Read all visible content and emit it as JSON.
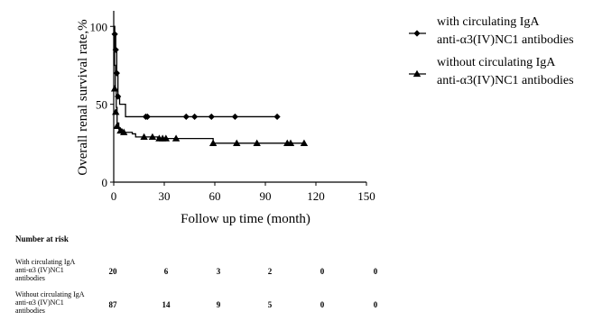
{
  "chart_data": {
    "type": "line",
    "xlabel": "Follow up time (month)",
    "ylabel": "Overall renal survival rate,%",
    "xlim": [
      0,
      150
    ],
    "ylim": [
      0,
      110
    ],
    "xticks": [
      0,
      30,
      60,
      90,
      120,
      150
    ],
    "yticks": [
      0,
      50,
      100
    ],
    "grid": false,
    "legend_position": "top-right",
    "series": [
      {
        "name": "with circulating IgA\nanti-α3(IV)NC1 antibodies",
        "legend_lines": [
          "with circulating IgA",
          "anti-α3(IV)NC1 antibodies"
        ],
        "marker": "diamond",
        "steps": [
          [
            0,
            100
          ],
          [
            0.6,
            95
          ],
          [
            1.2,
            85
          ],
          [
            1.8,
            70
          ],
          [
            2.5,
            55
          ],
          [
            3.5,
            50
          ],
          [
            7,
            42
          ],
          [
            97,
            42
          ]
        ],
        "markers": [
          [
            0.6,
            95
          ],
          [
            1.2,
            85
          ],
          [
            1.8,
            70
          ],
          [
            2.5,
            55
          ],
          [
            19,
            42
          ],
          [
            20,
            42
          ],
          [
            43,
            42
          ],
          [
            48,
            42
          ],
          [
            58,
            42
          ],
          [
            72,
            42
          ],
          [
            97,
            42
          ]
        ]
      },
      {
        "name": "without circulating IgA\nanti-α3(IV)NC1 antibodies",
        "legend_lines": [
          "without circulating IgA",
          "anti-α3(IV)NC1 antibodies"
        ],
        "marker": "triangle",
        "steps": [
          [
            0,
            100
          ],
          [
            0.5,
            75
          ],
          [
            1,
            60
          ],
          [
            1.5,
            48
          ],
          [
            2,
            38
          ],
          [
            3,
            34
          ],
          [
            5,
            32
          ],
          [
            11,
            31
          ],
          [
            13,
            29
          ],
          [
            22,
            29
          ],
          [
            26,
            28
          ],
          [
            58,
            28
          ],
          [
            59,
            25
          ],
          [
            113,
            25
          ]
        ],
        "markers": [
          [
            0.6,
            60
          ],
          [
            1.2,
            45
          ],
          [
            2,
            36
          ],
          [
            4,
            33
          ],
          [
            6,
            32
          ],
          [
            18,
            29
          ],
          [
            23,
            29
          ],
          [
            27,
            28
          ],
          [
            29,
            28
          ],
          [
            31,
            28
          ],
          [
            37,
            28
          ],
          [
            59,
            25
          ],
          [
            73,
            25
          ],
          [
            85,
            25
          ],
          [
            103,
            25
          ],
          [
            105,
            25
          ],
          [
            113,
            25
          ]
        ]
      }
    ]
  },
  "risk_table": {
    "title": "Number at risk",
    "rows": [
      {
        "label": "With circulating IgA anti-α3 (IV)NC1 antibodies",
        "values": [
          "20",
          "6",
          "3",
          "2",
          "0",
          "0"
        ]
      },
      {
        "label": "Without circulating IgA anti-α3 (IV)NC1 antibodies",
        "values": [
          "87",
          "14",
          "9",
          "5",
          "0",
          "0"
        ]
      }
    ]
  }
}
